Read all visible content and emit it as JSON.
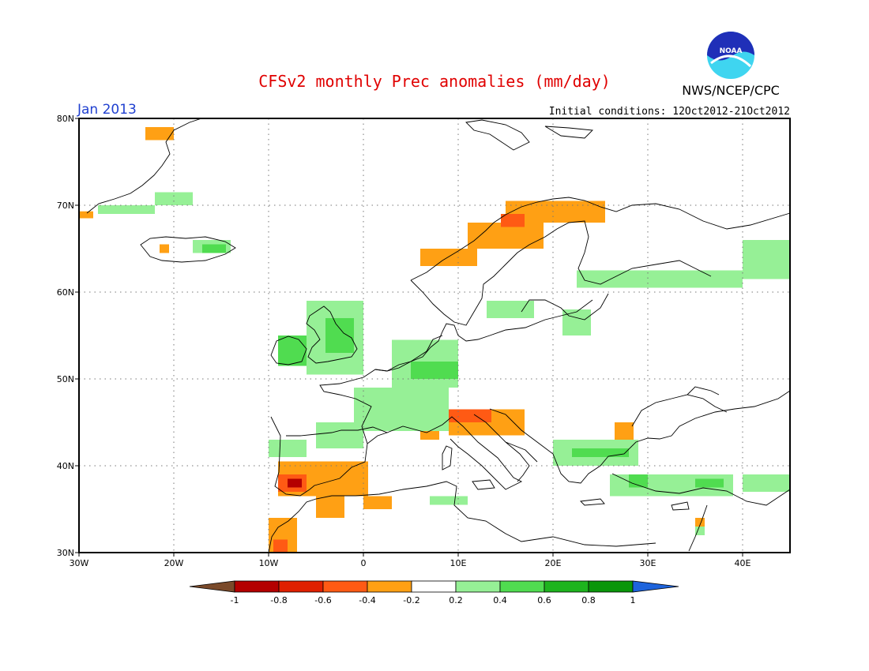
{
  "header": {
    "title": "CFSv2 monthly Prec anomalies (mm/day)",
    "month": "Jan 2013",
    "initial_conditions": "Initial conditions: 12Oct2012-21Oct2012",
    "agency": "NWS/NCEP/CPC",
    "logo_text": "NOAA",
    "title_color": "#e00000",
    "month_color": "#2040d0"
  },
  "map": {
    "lon_range": [
      -30,
      45
    ],
    "lat_range": [
      30,
      80
    ],
    "lon_tick_labels": [
      "30W",
      "20W",
      "10W",
      "0",
      "10E",
      "20E",
      "30E",
      "40E"
    ],
    "lat_tick_labels": [
      "30N",
      "40N",
      "50N",
      "60N",
      "70N",
      "80N"
    ],
    "grid": "dotted"
  },
  "colorbar": {
    "labels": [
      "-1",
      "-0.8",
      "-0.6",
      "-0.4",
      "-0.2",
      "0.2",
      "0.4",
      "0.6",
      "0.8",
      "1"
    ],
    "colors": {
      "below_min": "#7a4a2a",
      "n1_to_n08": "#b40000",
      "n08_to_n06": "#e02000",
      "n06_to_n04": "#ff5a14",
      "n04_to_n02": "#ffa014",
      "n02_to_02": "#ffffff",
      "02_to_04": "#96f096",
      "04_to_06": "#50dc50",
      "06_to_08": "#1eb41e",
      "08_to_1": "#0a960a",
      "above_max": "#1e64dc"
    }
  },
  "anomaly_regions": [
    {
      "category": "04_to_06",
      "lon": [
        -9,
        -5
      ],
      "lat": [
        51.5,
        55
      ]
    },
    {
      "category": "02_to_04",
      "lon": [
        -6,
        0
      ],
      "lat": [
        50.5,
        59
      ]
    },
    {
      "category": "04_to_06",
      "lon": [
        -4,
        -1
      ],
      "lat": [
        53,
        57
      ]
    },
    {
      "category": "02_to_04",
      "lon": [
        -1,
        9
      ],
      "lat": [
        44,
        49
      ]
    },
    {
      "category": "02_to_04",
      "lon": [
        3,
        10
      ],
      "lat": [
        49,
        54.5
      ]
    },
    {
      "category": "04_to_06",
      "lon": [
        5,
        10
      ],
      "lat": [
        50,
        52
      ]
    },
    {
      "category": "02_to_04",
      "lon": [
        -5,
        0
      ],
      "lat": [
        42,
        45
      ]
    },
    {
      "category": "02_to_04",
      "lon": [
        -10,
        -6
      ],
      "lat": [
        41,
        43
      ]
    },
    {
      "category": "n04_to_n02",
      "lon": [
        -9,
        0.5
      ],
      "lat": [
        36.5,
        40.5
      ]
    },
    {
      "category": "n06_to_n04",
      "lon": [
        -9,
        -6
      ],
      "lat": [
        37,
        39
      ]
    },
    {
      "category": "n1_to_n08",
      "lon": [
        -8,
        -6.5
      ],
      "lat": [
        37.5,
        38.5
      ]
    },
    {
      "category": "n04_to_n02",
      "lon": [
        -10,
        -7
      ],
      "lat": [
        30,
        34
      ]
    },
    {
      "category": "n06_to_n04",
      "lon": [
        -9.5,
        -8
      ],
      "lat": [
        30,
        31.5
      ]
    },
    {
      "category": "n04_to_n02",
      "lon": [
        -5,
        -2
      ],
      "lat": [
        34,
        36.5
      ]
    },
    {
      "category": "n04_to_n02",
      "lon": [
        0,
        3
      ],
      "lat": [
        35,
        36.5
      ]
    },
    {
      "category": "n04_to_n02",
      "lon": [
        9,
        17
      ],
      "lat": [
        43.5,
        46.5
      ]
    },
    {
      "category": "n06_to_n04",
      "lon": [
        9,
        13.5
      ],
      "lat": [
        45,
        46.5
      ]
    },
    {
      "category": "n04_to_n02",
      "lon": [
        6,
        8
      ],
      "lat": [
        43,
        44
      ]
    },
    {
      "category": "n04_to_n02",
      "lon": [
        26.5,
        28.5
      ],
      "lat": [
        43,
        45
      ]
    },
    {
      "category": "n04_to_n02",
      "lon": [
        6,
        12
      ],
      "lat": [
        63,
        65
      ]
    },
    {
      "category": "n04_to_n02",
      "lon": [
        11,
        19
      ],
      "lat": [
        65,
        68
      ]
    },
    {
      "category": "n04_to_n02",
      "lon": [
        15,
        25.5
      ],
      "lat": [
        68,
        70.5
      ]
    },
    {
      "category": "n06_to_n04",
      "lon": [
        14.5,
        17
      ],
      "lat": [
        67.5,
        69
      ]
    },
    {
      "category": "02_to_04",
      "lon": [
        20,
        29
      ],
      "lat": [
        40,
        43
      ]
    },
    {
      "category": "04_to_06",
      "lon": [
        22,
        28
      ],
      "lat": [
        41,
        42
      ]
    },
    {
      "category": "02_to_04",
      "lon": [
        26,
        39
      ],
      "lat": [
        36.5,
        39
      ]
    },
    {
      "category": "04_to_06",
      "lon": [
        28,
        30
      ],
      "lat": [
        37.5,
        39
      ]
    },
    {
      "category": "04_to_06",
      "lon": [
        35,
        38
      ],
      "lat": [
        37.5,
        38.5
      ]
    },
    {
      "category": "02_to_04",
      "lon": [
        40,
        45
      ],
      "lat": [
        37,
        39
      ]
    },
    {
      "category": "02_to_04",
      "lon": [
        40,
        45
      ],
      "lat": [
        61.5,
        66
      ]
    },
    {
      "category": "02_to_04",
      "lon": [
        22.5,
        40
      ],
      "lat": [
        60.5,
        62.5
      ]
    },
    {
      "category": "02_to_04",
      "lon": [
        21,
        24
      ],
      "lat": [
        55,
        58
      ]
    },
    {
      "category": "02_to_04",
      "lon": [
        13,
        18
      ],
      "lat": [
        57,
        59
      ]
    },
    {
      "category": "02_to_04",
      "lon": [
        -22,
        -18
      ],
      "lat": [
        70,
        71.5
      ]
    },
    {
      "category": "02_to_04",
      "lon": [
        -28,
        -22
      ],
      "lat": [
        69,
        70
      ]
    },
    {
      "category": "02_to_04",
      "lon": [
        -18,
        -14
      ],
      "lat": [
        64.5,
        66
      ]
    },
    {
      "category": "04_to_06",
      "lon": [
        -17,
        -14.5
      ],
      "lat": [
        64.5,
        65.5
      ]
    },
    {
      "category": "n04_to_n02",
      "lon": [
        -23,
        -20
      ],
      "lat": [
        77.5,
        79
      ]
    },
    {
      "category": "n04_to_n02",
      "lon": [
        -30,
        -28.5
      ],
      "lat": [
        68.5,
        69.3
      ]
    },
    {
      "category": "n04_to_n02",
      "lon": [
        -21.5,
        -20.5
      ],
      "lat": [
        64.5,
        65.5
      ]
    },
    {
      "category": "02_to_04",
      "lon": [
        7,
        11
      ],
      "lat": [
        35.5,
        36.5
      ]
    },
    {
      "category": "02_to_04",
      "lon": [
        35,
        36
      ],
      "lat": [
        32,
        33
      ]
    },
    {
      "category": "n04_to_n02",
      "lon": [
        35,
        36
      ],
      "lat": [
        33,
        34
      ]
    }
  ]
}
